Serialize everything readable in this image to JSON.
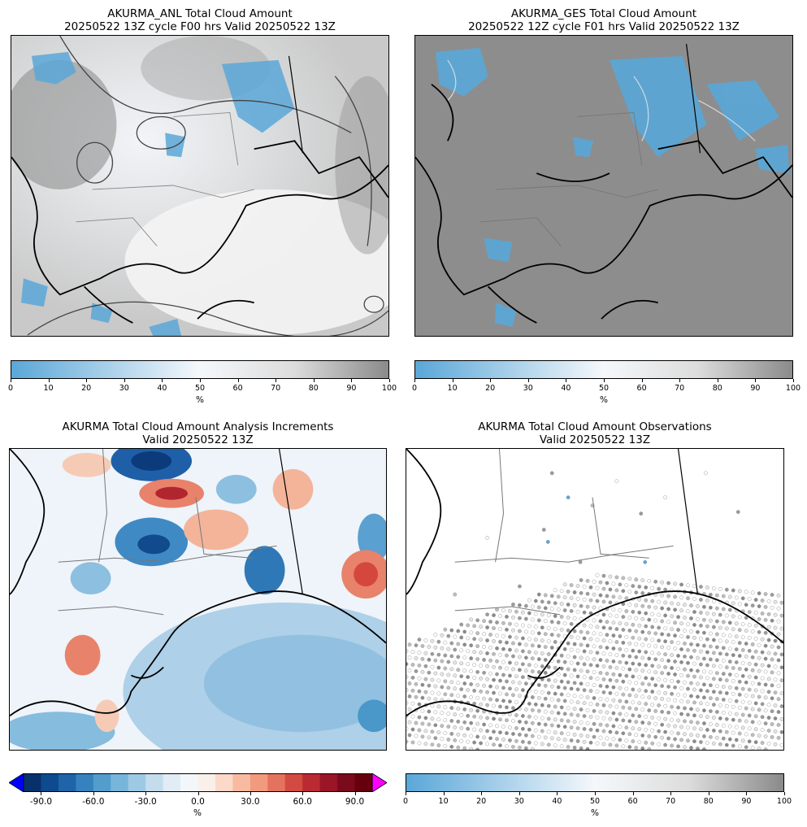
{
  "panels": {
    "anl": {
      "title_line1": "AKURMA_ANL Total Cloud Amount",
      "title_line2": "20250522 13Z cycle F00 hrs Valid 20250522 13Z"
    },
    "ges": {
      "title_line1": "AKURMA_GES Total Cloud Amount",
      "title_line2": "20250522 12Z cycle F01 hrs Valid 20250522 13Z"
    },
    "inc": {
      "title_line1": "AKURMA Total Cloud Amount Analysis Increments",
      "title_line2": "Valid 20250522 13Z"
    },
    "obs": {
      "title_line1": "AKURMA Total Cloud Amount Observations",
      "title_line2": "Valid 20250522 13Z"
    }
  },
  "colorbars": {
    "anl": {
      "ticks": [
        "0",
        "10",
        "20",
        "30",
        "40",
        "50",
        "60",
        "70",
        "80",
        "90",
        "100"
      ],
      "unit": "%"
    },
    "ges": {
      "ticks": [
        "0",
        "10",
        "20",
        "30",
        "40",
        "50",
        "60",
        "70",
        "80",
        "90",
        "100"
      ],
      "unit": "%"
    },
    "inc": {
      "ticks": [
        "-90.0",
        "-60.0",
        "-30.0",
        "0.0",
        "30.0",
        "60.0",
        "90.0"
      ],
      "unit": "%"
    },
    "obs": {
      "ticks": [
        "0",
        "10",
        "20",
        "30",
        "40",
        "50",
        "60",
        "70",
        "80",
        "90",
        "100"
      ],
      "unit": "%"
    }
  },
  "colors": {
    "low": "#5aa7d8",
    "mid": "#f5f8fb",
    "high": "#8a8a8a",
    "div_neg": "#08306b",
    "div_pos": "#67000d",
    "under": "#0000ff",
    "over": "#ff00ff"
  },
  "chart_data": [
    {
      "type": "heatmap",
      "title": "AKURMA_ANL Total Cloud Amount",
      "colorbar_range": [
        0,
        100
      ],
      "colorbar_label": "%"
    },
    {
      "type": "heatmap",
      "title": "AKURMA_GES Total Cloud Amount",
      "colorbar_range": [
        0,
        100
      ],
      "colorbar_label": "%"
    },
    {
      "type": "heatmap",
      "title": "AKURMA Total Cloud Amount Analysis Increments",
      "colorbar_range": [
        -100,
        100
      ],
      "colorbar_ticks": [
        -90,
        -60,
        -30,
        0,
        30,
        60,
        90
      ],
      "colorbar_label": "%"
    },
    {
      "type": "scatter",
      "title": "AKURMA Total Cloud Amount Observations",
      "colorbar_range": [
        0,
        100
      ],
      "colorbar_label": "%"
    }
  ]
}
